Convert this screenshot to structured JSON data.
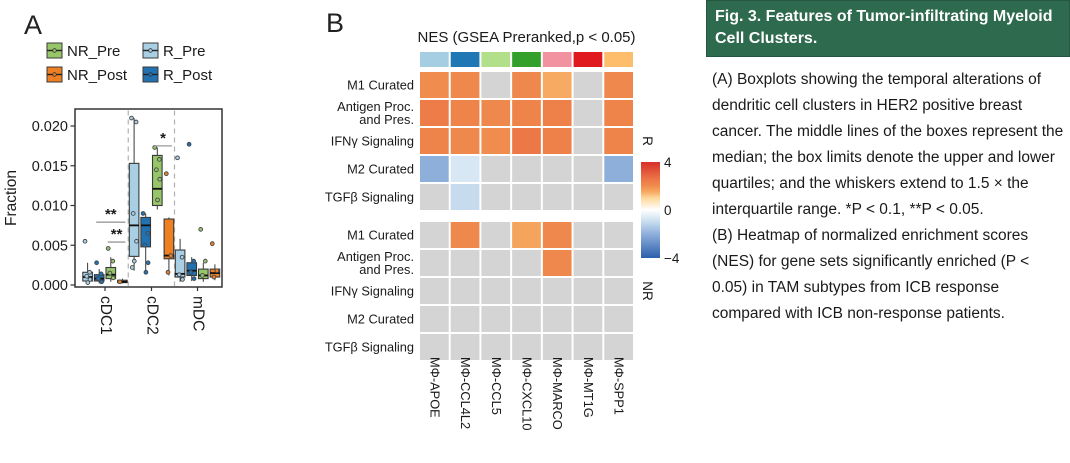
{
  "panels": {
    "a": {
      "label": "A"
    },
    "b": {
      "label": "B"
    }
  },
  "caption": {
    "title": "Fig. 3. Features of Tumor-infiltrating Myeloid Cell Clusters.",
    "paragraph_a": "(A) Boxplots showing the temporal alterations of dendritic cell clusters in HER2 positive breast cancer. The middle lines of the boxes represent the median; the box limits denote the upper and lower quartiles; and the whiskers extend to 1.5 × the interquartile range.  *P < 0.1, **P < 0.05.",
    "paragraph_b": "(B) Heatmap of normalized enrichment scores (NES) for gene sets significantly enriched (P < 0.05) in TAM subtypes from ICB response compared with ICB non-response patients.",
    "header_bg": "#2e6a4d"
  },
  "chart_data": [
    {
      "type": "boxplot",
      "ylabel": "Fraction",
      "ylim": [
        0,
        0.022
      ],
      "yticks": [
        0,
        0.005,
        0.01,
        0.015,
        0.02
      ],
      "categories": [
        "cDC1",
        "cDC2",
        "mDC"
      ],
      "legend": {
        "position": "top-left",
        "items": [
          {
            "label": "NR_Pre",
            "color": "#97c669"
          },
          {
            "label": "R_Pre",
            "color": "#a9cfe5"
          },
          {
            "label": "NR_Post",
            "color": "#ee7f22"
          },
          {
            "label": "R_Post",
            "color": "#2272b2"
          }
        ]
      },
      "series": [
        {
          "name": "R_Pre",
          "color": "#a9cfe5",
          "boxes": [
            {
              "lo": 0.0002,
              "q1": 0.0005,
              "median": 0.001,
              "q3": 0.0016,
              "hi": 0.0028,
              "points": [
                0.0055,
                0.0016,
                0.0011,
                0.0007,
                0.0003
              ]
            },
            {
              "lo": 0.0018,
              "q1": 0.0036,
              "median": 0.0075,
              "q3": 0.0153,
              "hi": 0.021,
              "points": [
                0.021,
                0.0205,
                0.009,
                0.0055,
                0.003,
                0.0022
              ]
            },
            {
              "lo": 0.0004,
              "q1": 0.001,
              "median": 0.0014,
              "q3": 0.0044,
              "hi": 0.0058,
              "points": [
                0.016,
                0.0035,
                0.0013,
                0.0007
              ]
            }
          ]
        },
        {
          "name": "R_Post",
          "color": "#2272b2",
          "boxes": [
            {
              "lo": 0.0002,
              "q1": 0.0005,
              "median": 0.0008,
              "q3": 0.0013,
              "hi": 0.002,
              "points": [
                0.0028,
                0.0014,
                0.0008,
                0.0004
              ]
            },
            {
              "lo": 0.0015,
              "q1": 0.0048,
              "median": 0.0075,
              "q3": 0.0085,
              "hi": 0.009,
              "points": [
                0.009,
                0.0065,
                0.005,
                0.0028,
                0.0016
              ]
            },
            {
              "lo": 0.0005,
              "q1": 0.0012,
              "median": 0.0018,
              "q3": 0.0028,
              "hi": 0.0035,
              "points": [
                0.0177,
                0.003,
                0.0016,
                0.0008
              ]
            }
          ]
        },
        {
          "name": "NR_Pre",
          "color": "#97c669",
          "boxes": [
            {
              "lo": 0.0004,
              "q1": 0.0008,
              "median": 0.0013,
              "q3": 0.0022,
              "hi": 0.0035,
              "points": [
                0.0046,
                0.003,
                0.0015,
                0.0009
              ]
            },
            {
              "lo": 0.0095,
              "q1": 0.01,
              "median": 0.0121,
              "q3": 0.0163,
              "hi": 0.0173,
              "points": [
                0.0173,
                0.0158,
                0.0145,
                0.0133,
                0.0107
              ]
            },
            {
              "lo": 0.0004,
              "q1": 0.0008,
              "median": 0.0012,
              "q3": 0.002,
              "hi": 0.0028,
              "points": [
                0.007,
                0.003,
                0.0012
              ]
            }
          ]
        },
        {
          "name": "NR_Post",
          "color": "#ee7f22",
          "boxes": [
            {
              "lo": 0.0002,
              "q1": 0.0003,
              "median": 0.0004,
              "q3": 0.0006,
              "hi": 0.0008,
              "points": [
                0.0004
              ]
            },
            {
              "lo": 0.0012,
              "q1": 0.0033,
              "median": 0.0037,
              "q3": 0.0083,
              "hi": 0.0085,
              "points": [
                0.014,
                0.0037,
                0.0016
              ]
            },
            {
              "lo": 0.0006,
              "q1": 0.001,
              "median": 0.0015,
              "q3": 0.002,
              "hi": 0.0026,
              "points": [
                0.0052,
                0.0018,
                0.001
              ]
            }
          ]
        }
      ],
      "annotations": [
        {
          "group": "cDC1",
          "label": "**",
          "y": 0.0079,
          "from": "R_Post",
          "to": "NR_Post"
        },
        {
          "group": "cDC1",
          "label": "**",
          "y": 0.0054,
          "from": "NR_Pre",
          "to": "NR_Post"
        },
        {
          "group": "cDC2",
          "label": "*",
          "y": 0.0175,
          "from": "NR_Pre",
          "to": "NR_Post"
        }
      ]
    },
    {
      "type": "heatmap",
      "title": "NES (GSEA Preranked,p < 0.05)",
      "columns": [
        "MΦ-APOE",
        "MΦ-CCL4L2",
        "MΦ-CCL5",
        "MΦ-CXCL10",
        "MΦ-MARCO",
        "MΦ-MT1G",
        "MΦ-SPP1"
      ],
      "column_colors": [
        "#a6cee3",
        "#1f78b4",
        "#b2df8a",
        "#33a02c",
        "#f2919f",
        "#e0191f",
        "#fdbd6a"
      ],
      "rows": [
        [
          "M1 Curated"
        ],
        [
          "Antigen Proc.",
          "and Pres."
        ],
        [
          "IFNγ Signaling"
        ],
        [
          "M2 Curated"
        ],
        [
          "TGFβ Signaling"
        ]
      ],
      "blocks": [
        {
          "name": "R",
          "values": [
            [
              2.0,
              2.1,
              null,
              2.1,
              1.5,
              null,
              2.1
            ],
            [
              2.4,
              2.2,
              2.1,
              2.2,
              2.3,
              null,
              2.2
            ],
            [
              2.2,
              2.1,
              2.0,
              2.5,
              2.3,
              null,
              2.2
            ],
            [
              -2.0,
              -0.7,
              null,
              null,
              null,
              null,
              -2.0
            ],
            [
              null,
              -1.0,
              null,
              null,
              null,
              null,
              null
            ]
          ]
        },
        {
          "name": "NR",
          "values": [
            [
              null,
              2.1,
              null,
              1.6,
              2.1,
              null,
              null
            ],
            [
              null,
              null,
              null,
              null,
              2.1,
              null,
              null
            ],
            [
              null,
              null,
              null,
              null,
              null,
              null,
              null
            ],
            [
              null,
              null,
              null,
              null,
              null,
              null,
              null
            ],
            [
              null,
              null,
              null,
              null,
              null,
              null,
              null
            ]
          ]
        }
      ],
      "null_color": "#d4d4d4",
      "colormap_stops": [
        [
          -4,
          "#2b5fac"
        ],
        [
          -2,
          "#8fafdb"
        ],
        [
          -1,
          "#c6dcee"
        ],
        [
          0,
          "#ffffff"
        ],
        [
          1,
          "#fdd79b"
        ],
        [
          1.5,
          "#f6aa62"
        ],
        [
          2,
          "#f08c4e"
        ],
        [
          2.6,
          "#ec7446"
        ],
        [
          4,
          "#d7302a"
        ]
      ],
      "colorbar": {
        "min": -4,
        "max": 4,
        "ticks": [
          4,
          0,
          -4
        ]
      }
    }
  ]
}
